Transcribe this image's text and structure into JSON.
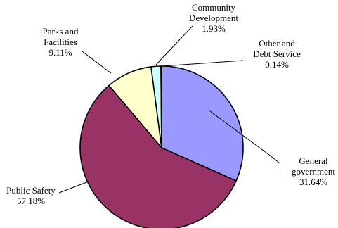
{
  "chart_data": {
    "type": "pie",
    "title": "",
    "start_angle_deg": 0,
    "direction": "clockwise",
    "slices": [
      {
        "label": "General government",
        "label_lines": [
          "General",
          "government"
        ],
        "value_label": "31.64%",
        "value": 31.64,
        "color": "#9999ff"
      },
      {
        "label": "Public Safety",
        "label_lines": [
          "Public Safety"
        ],
        "value_label": "57.18%",
        "value": 57.18,
        "color": "#993366"
      },
      {
        "label": "Parks and Facilities",
        "label_lines": [
          "Parks and",
          "Facilities"
        ],
        "value_label": "9.11%",
        "value": 9.11,
        "color": "#ffffcc"
      },
      {
        "label": "Community Development",
        "label_lines": [
          "Community",
          "Development"
        ],
        "value_label": "1.93%",
        "value": 1.93,
        "color": "#ccffff"
      },
      {
        "label": "Other and Debt Service",
        "label_lines": [
          "Other and",
          "Debt Service"
        ],
        "value_label": "0.14%",
        "value": 0.14,
        "color": "#660066"
      }
    ]
  }
}
